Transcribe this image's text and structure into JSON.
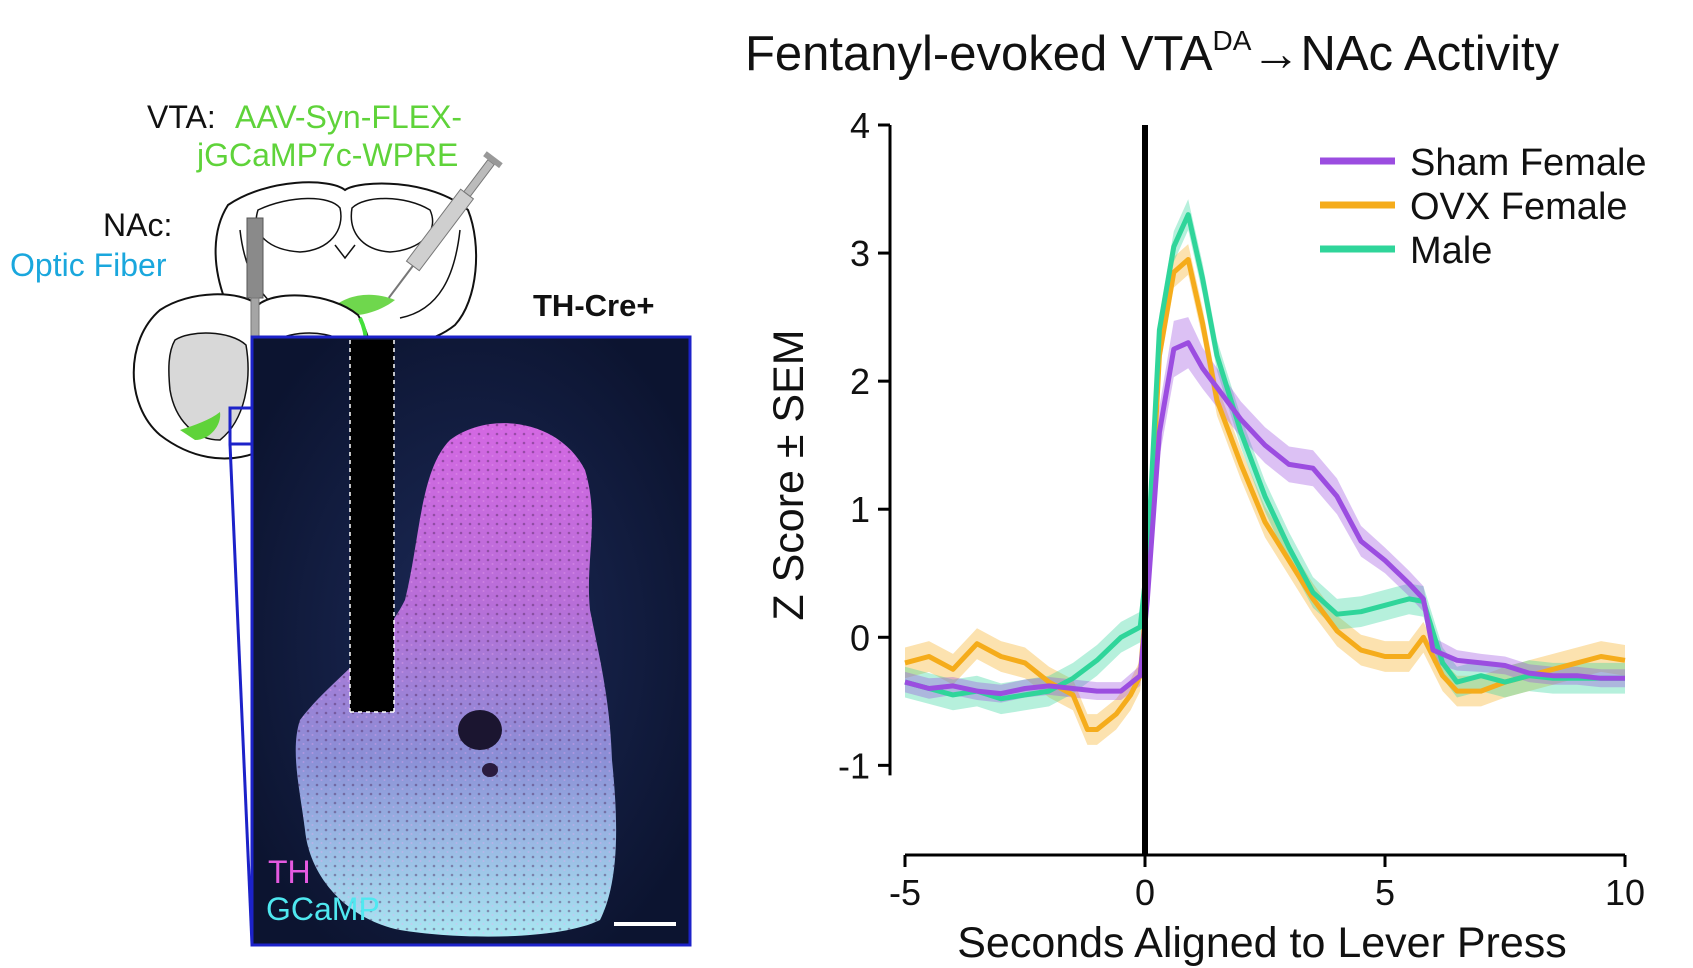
{
  "figure": {
    "title_main": "Fentanyl-evoked VTA",
    "title_sup": "DA",
    "title_tail": "→NAc Activity"
  },
  "schematic": {
    "vta_label": "VTA:",
    "vta_virus_line1": "AAV-Syn-FLEX-",
    "vta_virus_line2": "jGCaMP7c-WPRE",
    "nac_label": "NAc:",
    "nac_fiber": "Optic Fiber",
    "mouse_line": "TH-Cre+",
    "stain_th": "TH",
    "stain_gcamp": "GCaMP"
  },
  "colors": {
    "sham": "#9b4de0",
    "ovx": "#f5ac1b",
    "male": "#2fd59a",
    "virus_green": "#5fd33a",
    "fiber_blue": "#1aa7dd",
    "box_blue": "#1c22c9",
    "th_magenta": "#e55ae0",
    "gcamp_cyan": "#4fe8f0"
  },
  "chart_data": {
    "type": "line",
    "title": "Fentanyl-evoked VTA^DA→NAc Activity",
    "xlabel": "Seconds Aligned to Lever Press",
    "ylabel": "Z Score ± SEM",
    "xlim": [
      -5,
      10
    ],
    "ylim": [
      -1.7,
      4
    ],
    "xticks": [
      "-5",
      "0",
      "5",
      "10"
    ],
    "xtick_values": [
      -5,
      0,
      5,
      10
    ],
    "yticks": [
      "4",
      "3",
      "2",
      "1",
      "0",
      "-1"
    ],
    "ytick_values": [
      4,
      3,
      2,
      1,
      0,
      -1
    ],
    "event_line_x": 0,
    "legend_position": "top-right",
    "series": [
      {
        "name": "Sham Female",
        "color_key": "sham",
        "x": [
          -5,
          -4.5,
          -4,
          -3.5,
          -3,
          -2.5,
          -2,
          -1.5,
          -1,
          -0.5,
          -0.1,
          0.05,
          0.3,
          0.6,
          0.9,
          1.2,
          1.6,
          2.0,
          2.5,
          3.0,
          3.5,
          4.0,
          4.5,
          5.0,
          5.5,
          5.8,
          6.0,
          6.5,
          7.0,
          7.5,
          8.0,
          8.5,
          9.0,
          9.5,
          10
        ],
        "y": [
          -0.35,
          -0.4,
          -0.38,
          -0.42,
          -0.44,
          -0.4,
          -0.38,
          -0.4,
          -0.42,
          -0.42,
          -0.3,
          0.3,
          1.6,
          2.25,
          2.3,
          2.1,
          1.9,
          1.7,
          1.5,
          1.35,
          1.32,
          1.1,
          0.75,
          0.6,
          0.42,
          0.3,
          -0.1,
          -0.18,
          -0.2,
          -0.22,
          -0.28,
          -0.3,
          -0.3,
          -0.32,
          -0.32
        ],
        "sem": [
          0.08,
          0.08,
          0.07,
          0.07,
          0.07,
          0.07,
          0.07,
          0.07,
          0.07,
          0.07,
          0.08,
          0.12,
          0.2,
          0.22,
          0.2,
          0.16,
          0.15,
          0.14,
          0.14,
          0.14,
          0.14,
          0.14,
          0.12,
          0.1,
          0.1,
          0.1,
          0.1,
          0.08,
          0.07,
          0.07,
          0.07,
          0.07,
          0.07,
          0.07,
          0.07
        ]
      },
      {
        "name": "OVX Female",
        "color_key": "ovx",
        "x": [
          -5,
          -4.5,
          -4,
          -3.5,
          -3,
          -2.5,
          -2,
          -1.5,
          -1.2,
          -1,
          -0.6,
          -0.3,
          -0.1,
          0.05,
          0.3,
          0.6,
          0.9,
          1.2,
          1.5,
          2.0,
          2.5,
          3.0,
          3.5,
          4.0,
          4.5,
          5.0,
          5.5,
          5.8,
          6.2,
          6.5,
          7.0,
          7.5,
          8.0,
          8.5,
          9.0,
          9.5,
          10
        ],
        "y": [
          -0.2,
          -0.15,
          -0.25,
          -0.05,
          -0.15,
          -0.2,
          -0.35,
          -0.45,
          -0.72,
          -0.72,
          -0.6,
          -0.45,
          -0.3,
          0.4,
          2.2,
          2.85,
          2.95,
          2.45,
          1.85,
          1.35,
          0.9,
          0.6,
          0.3,
          0.05,
          -0.1,
          -0.15,
          -0.15,
          0.0,
          -0.3,
          -0.42,
          -0.42,
          -0.35,
          -0.3,
          -0.25,
          -0.2,
          -0.15,
          -0.18
        ]
      },
      {
        "name": "Male",
        "color_key": "male",
        "x": [
          -5,
          -4.5,
          -4,
          -3.5,
          -3,
          -2.5,
          -2,
          -1.5,
          -1,
          -0.5,
          -0.1,
          0.05,
          0.3,
          0.6,
          0.9,
          1.2,
          1.5,
          2.0,
          2.5,
          3.0,
          3.5,
          4.0,
          4.5,
          5.0,
          5.5,
          5.8,
          6.2,
          6.5,
          7.0,
          7.5,
          8.0,
          8.5,
          9.0,
          9.5,
          10
        ],
        "y": [
          -0.35,
          -0.4,
          -0.45,
          -0.42,
          -0.48,
          -0.45,
          -0.42,
          -0.32,
          -0.18,
          0.0,
          0.08,
          0.6,
          2.4,
          3.05,
          3.3,
          2.8,
          2.2,
          1.6,
          1.1,
          0.7,
          0.35,
          0.18,
          0.2,
          0.25,
          0.3,
          0.28,
          -0.2,
          -0.35,
          -0.3,
          -0.35,
          -0.3,
          -0.32,
          -0.32,
          -0.32,
          -0.32
        ]
      }
    ]
  }
}
